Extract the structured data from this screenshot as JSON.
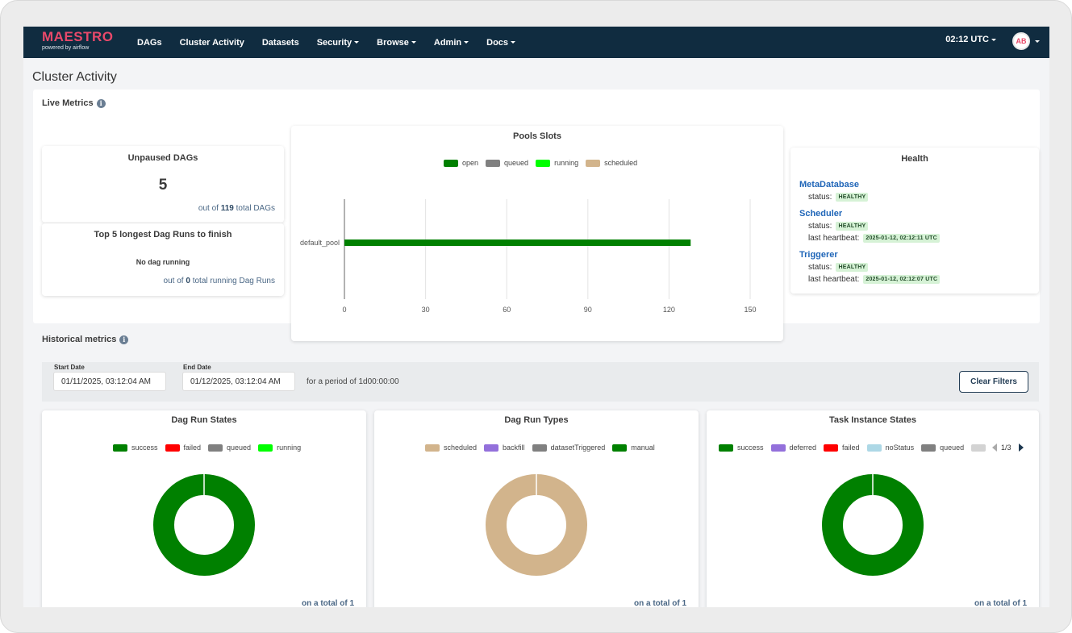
{
  "navbar": {
    "brand": "MAESTRO",
    "brand_sub": "powered by airflow",
    "items": [
      {
        "label": "DAGs",
        "dropdown": false
      },
      {
        "label": "Cluster Activity",
        "dropdown": false
      },
      {
        "label": "Datasets",
        "dropdown": false
      },
      {
        "label": "Security",
        "dropdown": true
      },
      {
        "label": "Browse",
        "dropdown": true
      },
      {
        "label": "Admin",
        "dropdown": true
      },
      {
        "label": "Docs",
        "dropdown": true
      }
    ],
    "time": "02:12 UTC",
    "avatar": "AB"
  },
  "page_title": "Cluster Activity",
  "live": {
    "title": "Live Metrics",
    "info_icon": "i",
    "unpaused": {
      "title": "Unpaused DAGs",
      "value": "5",
      "foot_prefix": "out of",
      "foot_value": "119",
      "foot_suffix": "total DAGs"
    },
    "longest": {
      "title": "Top 5 longest Dag Runs to finish",
      "empty": "No dag running",
      "foot_prefix": "out of",
      "foot_value": "0",
      "foot_suffix": "total running Dag Runs"
    },
    "pools": {
      "title": "Pools Slots"
    },
    "health": {
      "title": "Health",
      "metadatabase": {
        "name": "MetaDatabase",
        "status_label": "status:",
        "status": "HEALTHY"
      },
      "scheduler": {
        "name": "Scheduler",
        "status_label": "status:",
        "status": "HEALTHY",
        "hb_label": "last heartbeat:",
        "hb": "2025-01-12, 02:12:11 UTC"
      },
      "triggerer": {
        "name": "Triggerer",
        "status_label": "status:",
        "status": "HEALTHY",
        "hb_label": "last heartbeat:",
        "hb": "2025-01-12, 02:12:07 UTC"
      }
    }
  },
  "historical": {
    "title": "Historical metrics",
    "info_icon": "i",
    "start_label": "Start Date",
    "start_value": "01/11/2025, 03:12:04 AM",
    "end_label": "End Date",
    "end_value": "01/12/2025, 03:12:04 AM",
    "period": "for a period of 1d00:00:00",
    "clear_button": "Clear Filters",
    "run_states": {
      "title": "Dag Run States",
      "foot": "on a total of 1"
    },
    "run_types": {
      "title": "Dag Run Types",
      "foot": "on a total of 1"
    },
    "task_states": {
      "title": "Task Instance States",
      "foot": "on a total of 1",
      "pager": "1/3"
    }
  },
  "chart_data": [
    {
      "type": "bar",
      "orientation": "horizontal",
      "title": "Pools Slots",
      "categories": [
        "default_pool"
      ],
      "series": [
        {
          "name": "open",
          "color": "#008000",
          "values": [
            128
          ]
        },
        {
          "name": "queued",
          "color": "#808080",
          "values": [
            0
          ]
        },
        {
          "name": "running",
          "color": "#00ff00",
          "values": [
            0
          ]
        },
        {
          "name": "scheduled",
          "color": "#d2b48c",
          "values": [
            0
          ]
        }
      ],
      "xlim": [
        0,
        150
      ],
      "xticks": [
        "0",
        "30",
        "60",
        "90",
        "120",
        "150"
      ],
      "legend": "top",
      "grid": true
    },
    {
      "type": "pie",
      "title": "Dag Run States",
      "donut": true,
      "labels": [
        "success",
        "failed",
        "queued",
        "running"
      ],
      "colors": [
        "#008000",
        "#ff0000",
        "#808080",
        "#00ff00"
      ],
      "values": [
        1,
        0,
        0,
        0
      ],
      "legend": "top"
    },
    {
      "type": "pie",
      "title": "Dag Run Types",
      "donut": true,
      "labels": [
        "scheduled",
        "backfill",
        "datasetTriggered",
        "manual"
      ],
      "colors": [
        "#d2b48c",
        "#9370db",
        "#808080",
        "#008000"
      ],
      "values": [
        1,
        0,
        0,
        0
      ],
      "legend": "top"
    },
    {
      "type": "pie",
      "title": "Task Instance States",
      "donut": true,
      "labels": [
        "success",
        "deferred",
        "failed",
        "noStatus",
        "queued",
        "re"
      ],
      "colors": [
        "#008000",
        "#9370db",
        "#ff0000",
        "#add8e6",
        "#808080",
        "#d3d3d3"
      ],
      "values": [
        1,
        0,
        0,
        0,
        0,
        0
      ],
      "legend": "top"
    }
  ]
}
